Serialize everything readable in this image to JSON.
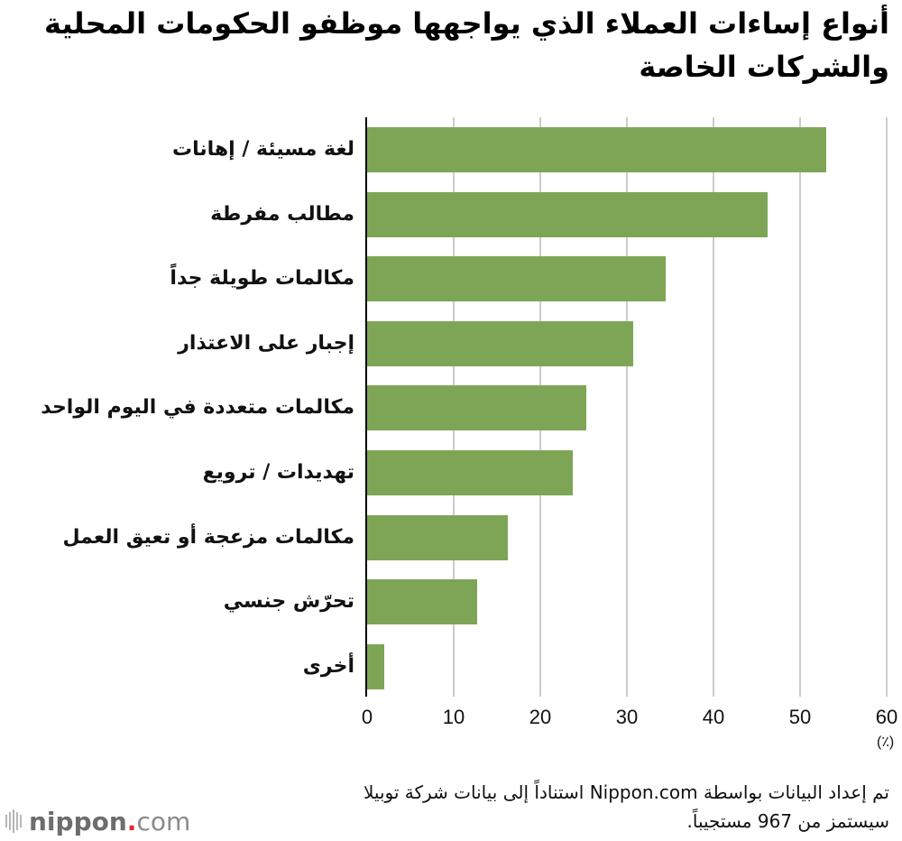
{
  "title": "أنواع إساءات العملاء الذي يواجهها موظفو الحكومات المحلية والشركات الخاصة",
  "x_axis": {
    "ticks": [
      "0",
      "10",
      "20",
      "30",
      "40",
      "50",
      "60"
    ],
    "unit": "(٪)"
  },
  "categories": [
    {
      "label": "لغة مسيئة / إهانات",
      "value": 53.0
    },
    {
      "label": "مطالب مفرطة",
      "value": 46.2
    },
    {
      "label": "مكالمات طويلة جداً",
      "value": 34.5
    },
    {
      "label": "إجبار على الاعتذار",
      "value": 30.7
    },
    {
      "label": "مكالمات متعددة في اليوم الواحد",
      "value": 25.3
    },
    {
      "label": "تهديدات / ترويع",
      "value": 23.7
    },
    {
      "label": "مكالمات مزعجة أو تعيق العمل",
      "value": 16.2
    },
    {
      "label": "تحرّش جنسي",
      "value": 12.7
    },
    {
      "label": "أخرى",
      "value": 2.0
    }
  ],
  "source": "تم إعداد البيانات بواسطة Nippon.com استناداً إلى بيانات شركة توبيلا سيستمز من 967 مستجيباً.",
  "logo": {
    "main": "nippon",
    "dot": ".",
    "suffix": "com"
  },
  "colors": {
    "bar": "#7ea555",
    "grid": "#cccccc",
    "axis": "#000000",
    "logo_dot": "#e3262b"
  },
  "chart_data": {
    "type": "bar",
    "orientation": "horizontal",
    "title": "أنواع إساءات العملاء الذي يواجهها موظفو الحكومات المحلية والشركات الخاصة",
    "categories": [
      "لغة مسيئة / إهانات",
      "مطالب مفرطة",
      "مكالمات طويلة جداً",
      "إجبار على الاعتذار",
      "مكالمات متعددة في اليوم الواحد",
      "تهديدات / ترويع",
      "مكالمات مزعجة أو تعيق العمل",
      "تحرّش جنسي",
      "أخرى"
    ],
    "values": [
      53.0,
      46.2,
      34.5,
      30.7,
      25.3,
      23.7,
      16.2,
      12.7,
      2.0
    ],
    "xlabel": "(٪)",
    "ylabel": "",
    "xlim": [
      0,
      60
    ],
    "xticks": [
      0,
      10,
      20,
      30,
      40,
      50,
      60
    ],
    "grid": "vertical",
    "legend": "none",
    "source_note": "تم إعداد البيانات بواسطة Nippon.com استناداً إلى بيانات شركة توبيلا سيستمز من 967 مستجيباً."
  }
}
